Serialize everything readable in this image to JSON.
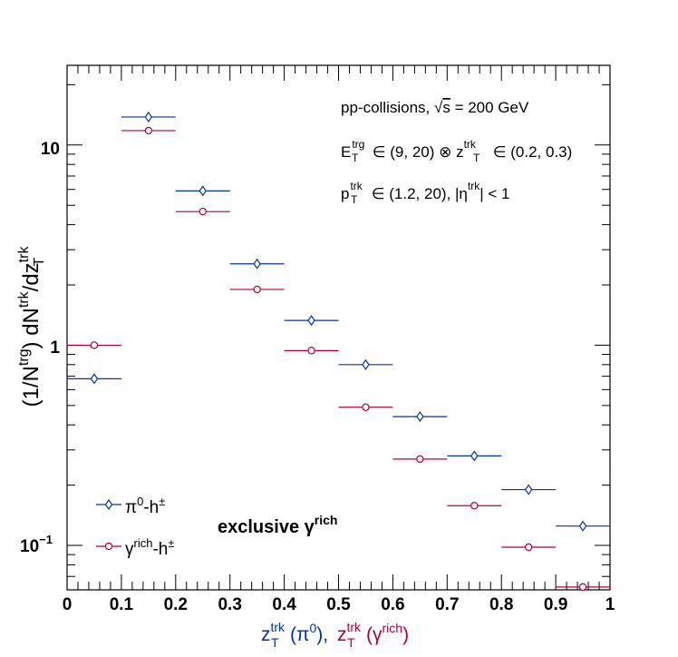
{
  "chart_data": {
    "type": "scatter",
    "x_axis": {
      "range": [
        0,
        1
      ],
      "ticks": [
        0,
        0.1,
        0.2,
        0.3,
        0.4,
        0.5,
        0.6,
        0.7,
        0.8,
        0.9,
        1
      ],
      "tick_labels": [
        "0",
        "0.1",
        "0.2",
        "0.3",
        "0.4",
        "0.5",
        "0.6",
        "0.7",
        "0.8",
        "0.9",
        "1"
      ],
      "label_part1_color": "#0033aa",
      "label_part2_color": "#b0003a"
    },
    "y_axis": {
      "scale": "log",
      "range": [
        0.06,
        25
      ],
      "major_ticks": [
        0.1,
        1,
        10
      ],
      "major_tick_labels": [
        "10",
        "1",
        "10"
      ],
      "label_color": "#000000"
    },
    "series": [
      {
        "name": "π0-h±",
        "color": "#0033aa",
        "marker": "diamond",
        "x": [
          0.05,
          0.15,
          0.25,
          0.35,
          0.45,
          0.55,
          0.65,
          0.75,
          0.85,
          0.95
        ],
        "x_halfwidth": 0.05,
        "y": [
          0.68,
          13.8,
          5.9,
          2.55,
          1.33,
          0.8,
          0.44,
          0.28,
          0.19,
          0.125
        ]
      },
      {
        "name": "γrich-h±",
        "color": "#b0003a",
        "marker": "open-circle",
        "x": [
          0.05,
          0.15,
          0.25,
          0.35,
          0.45,
          0.55,
          0.65,
          0.75,
          0.85,
          0.95
        ],
        "x_halfwidth": 0.05,
        "y": [
          1.0,
          11.8,
          4.65,
          1.9,
          0.94,
          0.49,
          0.27,
          0.158,
          0.098,
          0.062
        ]
      }
    ],
    "annotations": {
      "line1_prefix": "pp-collisions, ",
      "line1_sqrt": "√",
      "line1_s": "s",
      "line1_suffix": " = 200 GeV",
      "line2_E": "E",
      "line2_E_sup": "trg",
      "line2_E_sub": "T",
      "line2_mid": " ∈ (9, 20) ⊗ z",
      "line2_z_sup": "trk",
      "line2_z_sub": "T",
      "line2_end": " ∈ (0.2, 0.3)",
      "line3_p": "p",
      "line3_p_sup": "trk",
      "line3_p_sub": "T",
      "line3_mid": " ∈ (1.2, 20), |η",
      "line3_eta_sup": "trk",
      "line3_end": "| < 1",
      "exclusive_text": "exclusive γ",
      "exclusive_sup": "rich"
    },
    "legend": {
      "placement": "bottom-left",
      "entry1_base": "π",
      "entry1_sup1": "0",
      "entry1_mid": "-h",
      "entry1_sup2": "±",
      "entry2_base": "γ",
      "entry2_sup1": "rich",
      "entry2_mid": "-h",
      "entry2_sup2": "±"
    },
    "y_axis_title": {
      "part_open": "(1/N",
      "part_trg": "trg",
      "part_close": ") dN",
      "part_trk1": "trk",
      "part_slash": "/dz",
      "part_trk2": "trk",
      "part_T": "T"
    },
    "x_axis_title": {
      "z1": "z",
      "z1_sup": "trk",
      "z1_sub": "T",
      "paren1": "(π",
      "paren1_sup": "0",
      "paren1_close": "), ",
      "z2": "z",
      "z2_sup": "trk",
      "z2_sub": "T",
      "paren2": "(γ",
      "paren2_sup": "rich",
      "paren2_close": ")"
    },
    "y_tick_exponent": "−1",
    "grid": false
  }
}
